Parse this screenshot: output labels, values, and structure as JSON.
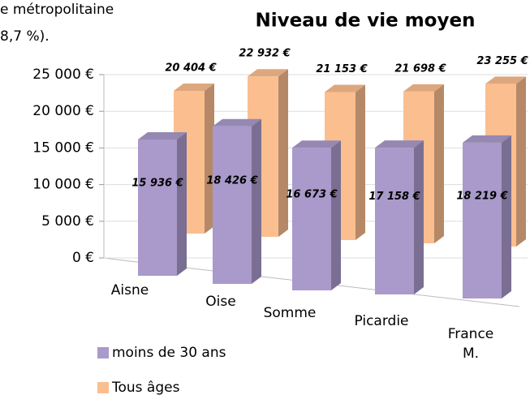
{
  "context_text": [
    "e   métropolitaine",
    "8,7 %)."
  ],
  "chart_data": {
    "type": "bar3d",
    "title": "Niveau de vie moyen",
    "categories": [
      "Aisne",
      "Oise",
      "Somme",
      "Picardie",
      "France M."
    ],
    "series": [
      {
        "name": "moins de 30 ans",
        "color": "#a99acb",
        "values": [
          15936,
          18426,
          16673,
          17158,
          18219
        ],
        "value_labels": [
          "15 936 €",
          "18 426 €",
          "16 673 €",
          "17 158 €",
          "18 219 €"
        ]
      },
      {
        "name": "Tous âges",
        "color": "#fbbe8f",
        "values": [
          20404,
          22932,
          21153,
          21698,
          23255
        ],
        "value_labels": [
          "20 404 €",
          "22 932 €",
          "21 153 €",
          "21 698 €",
          "23 255 €"
        ]
      }
    ],
    "ylim": [
      0,
      25000
    ],
    "yticks": [
      {
        "value": 0,
        "label": "0 €"
      },
      {
        "value": 5000,
        "label": "5 000 €"
      },
      {
        "value": 10000,
        "label": "10 000 €"
      },
      {
        "value": 15000,
        "label": "15 000 €"
      },
      {
        "value": 20000,
        "label": "20 000 €"
      },
      {
        "value": 25000,
        "label": "25 000 €"
      }
    ],
    "grid": true,
    "legend": "bottom-left"
  }
}
